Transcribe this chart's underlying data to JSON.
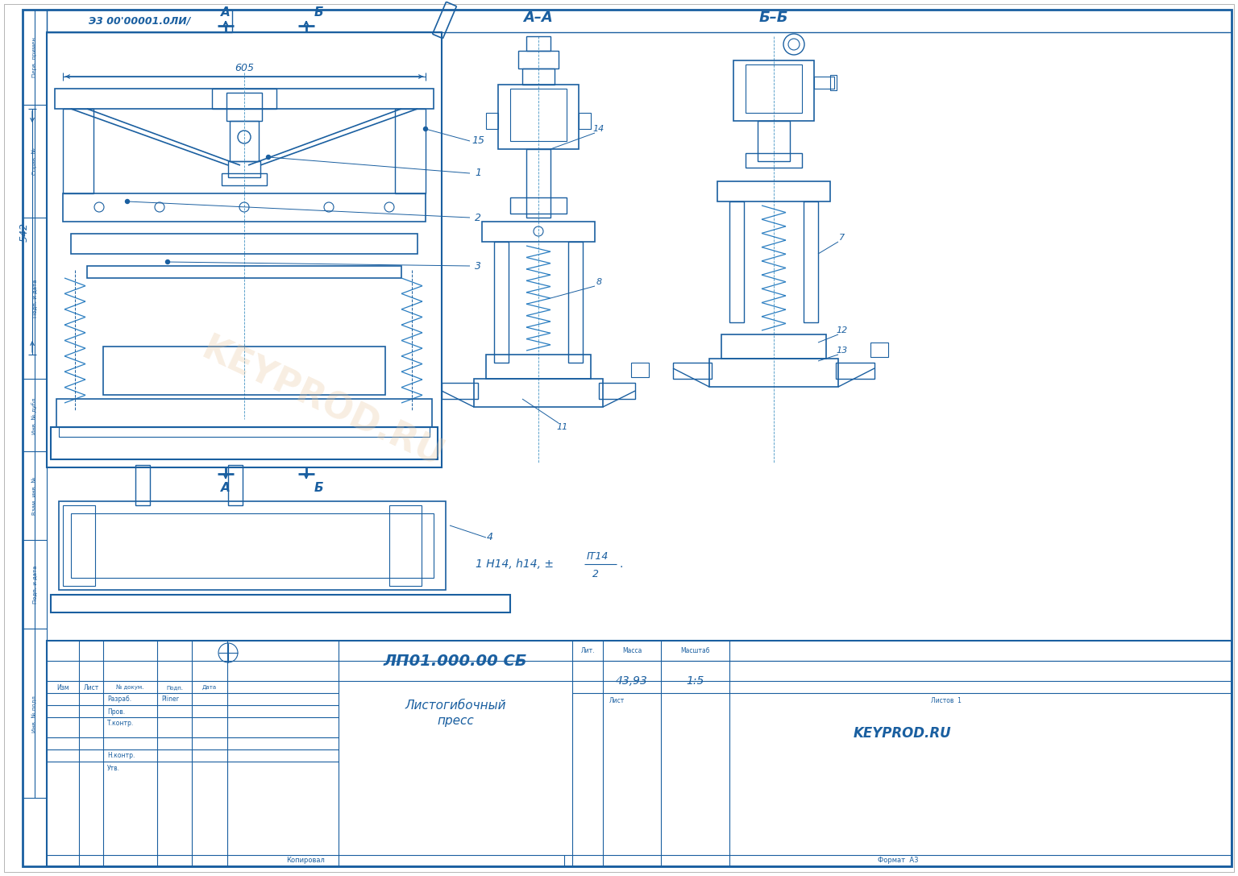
{
  "bg_color": "#FFFFFF",
  "lc": "#2B7EC1",
  "dc": "#1A5FA0",
  "tc": "#1A1A1A",
  "title_doc": "ЛП01.000.00 СБ",
  "product_name1": "Листогибочный",
  "product_name2": "пресс",
  "company": "KEYPROD.RU",
  "mass": "43,93",
  "scale": "1:5",
  "doc_num_top": "Э3 00'00001.0ЛИ/",
  "section_AA": "А–А",
  "section_BB": "Б–Б",
  "dim_605": "605",
  "dim_542": "542",
  "lbl_A": "А",
  "lbl_B": "Б",
  "lит": "Лит.",
  "mass_lbl": "Масса",
  "scale_lbl": "Масштаб",
  "sheet_lbl": "Лист",
  "sheets_lbl": "Листов  1",
  "copy_lbl": "Копировал",
  "format_lbl": "Формат  A3",
  "razrab": "Разраб.",
  "pliner": "Pliner",
  "prov": "Пров.",
  "tkontr": "Т.контр.",
  "nkontr": "Н.контр.",
  "utv": "Утв.",
  "izm": "Изм",
  "list_lbl": "Лист",
  "ndokum": "№ докум.",
  "podp": "Подп.",
  "data_lbl": "Дата",
  "left_labels": [
    "Перв. примен.",
    "Справ. №",
    "Подп. и дата",
    "Инв. № дубл.",
    "Взам. инв. №",
    "Подп. и дата",
    "Инв. № подл."
  ],
  "watermark": "KEYPROD.RU",
  "tolerance": "1 Н14, h14, ±",
  "tolerance2": "IT14",
  "tolerance3": "2"
}
